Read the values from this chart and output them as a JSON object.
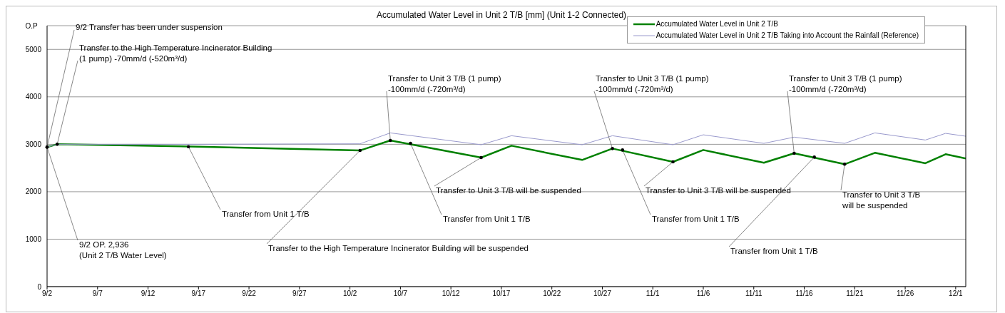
{
  "chart_data": {
    "type": "line",
    "title": "Accumulated Water Level in Unit 2 T/B [mm] (Unit 1-2 Connected)",
    "ylabel": "O.P",
    "series": [
      {
        "name": "Accumulated Water Level in Unit 2 T/B",
        "color": "#008000",
        "x": [
          "--09-02",
          "--09-03",
          "--09-17",
          "--10-03",
          "--10-06",
          "--10-15",
          "--10-18",
          "--10-25",
          "--10-28",
          "--11-03",
          "--11-06",
          "--11-12",
          "--11-15",
          "--11-20",
          "--11-23",
          "--11-28",
          "--11-30",
          "--12-02"
        ],
        "values": [
          2940,
          3000,
          2950,
          2870,
          3080,
          2720,
          2970,
          2670,
          2910,
          2630,
          2880,
          2610,
          2810,
          2580,
          2820,
          2600,
          2790,
          2700
        ]
      },
      {
        "name": "Accumulated Water Level in Unit 2 T/B Taking into Account the Rainfall (Reference)",
        "color": "#9999cc",
        "x": [
          "--09-02",
          "--09-03",
          "--09-17",
          "--10-03",
          "--10-06",
          "--10-15",
          "--10-18",
          "--10-25",
          "--10-28",
          "--11-03",
          "--11-06",
          "--11-12",
          "--11-15",
          "--11-20",
          "--11-23",
          "--11-28",
          "--11-30",
          "--12-02"
        ],
        "values": [
          2940,
          3000,
          3000,
          3010,
          3240,
          2990,
          3180,
          2990,
          3180,
          2990,
          3200,
          3020,
          3150,
          3020,
          3240,
          3090,
          3230,
          3170
        ]
      }
    ],
    "xlim": [
      "--09-02",
      "--12-02"
    ],
    "xticks": [
      {
        "value": "--09-02",
        "label": "9/2"
      },
      {
        "value": "--09-07",
        "label": "9/7"
      },
      {
        "value": "--09-12",
        "label": "9/12"
      },
      {
        "value": "--09-17",
        "label": "9/17"
      },
      {
        "value": "--09-22",
        "label": "9/22"
      },
      {
        "value": "--09-27",
        "label": "9/27"
      },
      {
        "value": "--10-02",
        "label": "10/2"
      },
      {
        "value": "--10-07",
        "label": "10/7"
      },
      {
        "value": "--10-12",
        "label": "10/12"
      },
      {
        "value": "--10-17",
        "label": "10/17"
      },
      {
        "value": "--10-22",
        "label": "10/22"
      },
      {
        "value": "--10-27",
        "label": "10/27"
      },
      {
        "value": "--11-01",
        "label": "11/1"
      },
      {
        "value": "--11-06",
        "label": "11/6"
      },
      {
        "value": "--11-11",
        "label": "11/11"
      },
      {
        "value": "--11-16",
        "label": "11/16"
      },
      {
        "value": "--11-21",
        "label": "11/21"
      },
      {
        "value": "--11-26",
        "label": "11/26"
      },
      {
        "value": "--12-01",
        "label": "12/1"
      }
    ],
    "ylim": [
      0,
      5500
    ],
    "yticks": [
      0,
      1000,
      2000,
      3000,
      4000,
      5000
    ],
    "grid": "y",
    "legend": "top right",
    "marker": "none",
    "line_style": "solid",
    "annotations": [
      {
        "text": "9/2 Transfer has been under suspension",
        "x": "--09-02",
        "y": 2940
      },
      {
        "text": "Transfer to the High Temperature Incinerator Building\n(1 pump) -70mm/d (-520m³/d)",
        "x": "--09-03",
        "y": 3000
      },
      {
        "text": "9/2 OP. 2,936\n(Unit 2 T/B Water Level)",
        "x": "--09-02",
        "y": 2940
      },
      {
        "text": "Transfer from Unit 1 T/B",
        "x": "--09-16",
        "y": 2950
      },
      {
        "text": "Transfer to the High Temperature Incinerator Building will be suspended",
        "x": "--10-03",
        "y": 2870
      },
      {
        "text": "Transfer to Unit 3 T/B (1 pump)\n-100mm/d (-720m³/d)",
        "x": "--10-06",
        "y": 3080
      },
      {
        "text": "Transfer from Unit 1 T/B",
        "x": "--10-08",
        "y": 3020
      },
      {
        "text": "Transfer to Unit 3 T/B will be suspended",
        "x": "--10-15",
        "y": 2720
      },
      {
        "text": "Transfer to Unit 3 T/B (1 pump)\n-100mm/d (-720m³/d)",
        "x": "--10-28",
        "y": 2910
      },
      {
        "text": "Transfer to Unit 3 T/B will be suspended",
        "x": "--11-03",
        "y": 2630
      },
      {
        "text": "Transfer from Unit 1 T/B",
        "x": "--10-29",
        "y": 2880
      },
      {
        "text": "Transfer to Unit 3 T/B (1 pump)\n-100mm/d (-720m³/d)",
        "x": "--11-15",
        "y": 2810
      },
      {
        "text": "Transfer from Unit 1 T/B",
        "x": "--11-17",
        "y": 2730
      },
      {
        "text": "Transfer to Unit 3 T/B\nwill be suspended",
        "x": "--11-20",
        "y": 2580
      }
    ]
  }
}
